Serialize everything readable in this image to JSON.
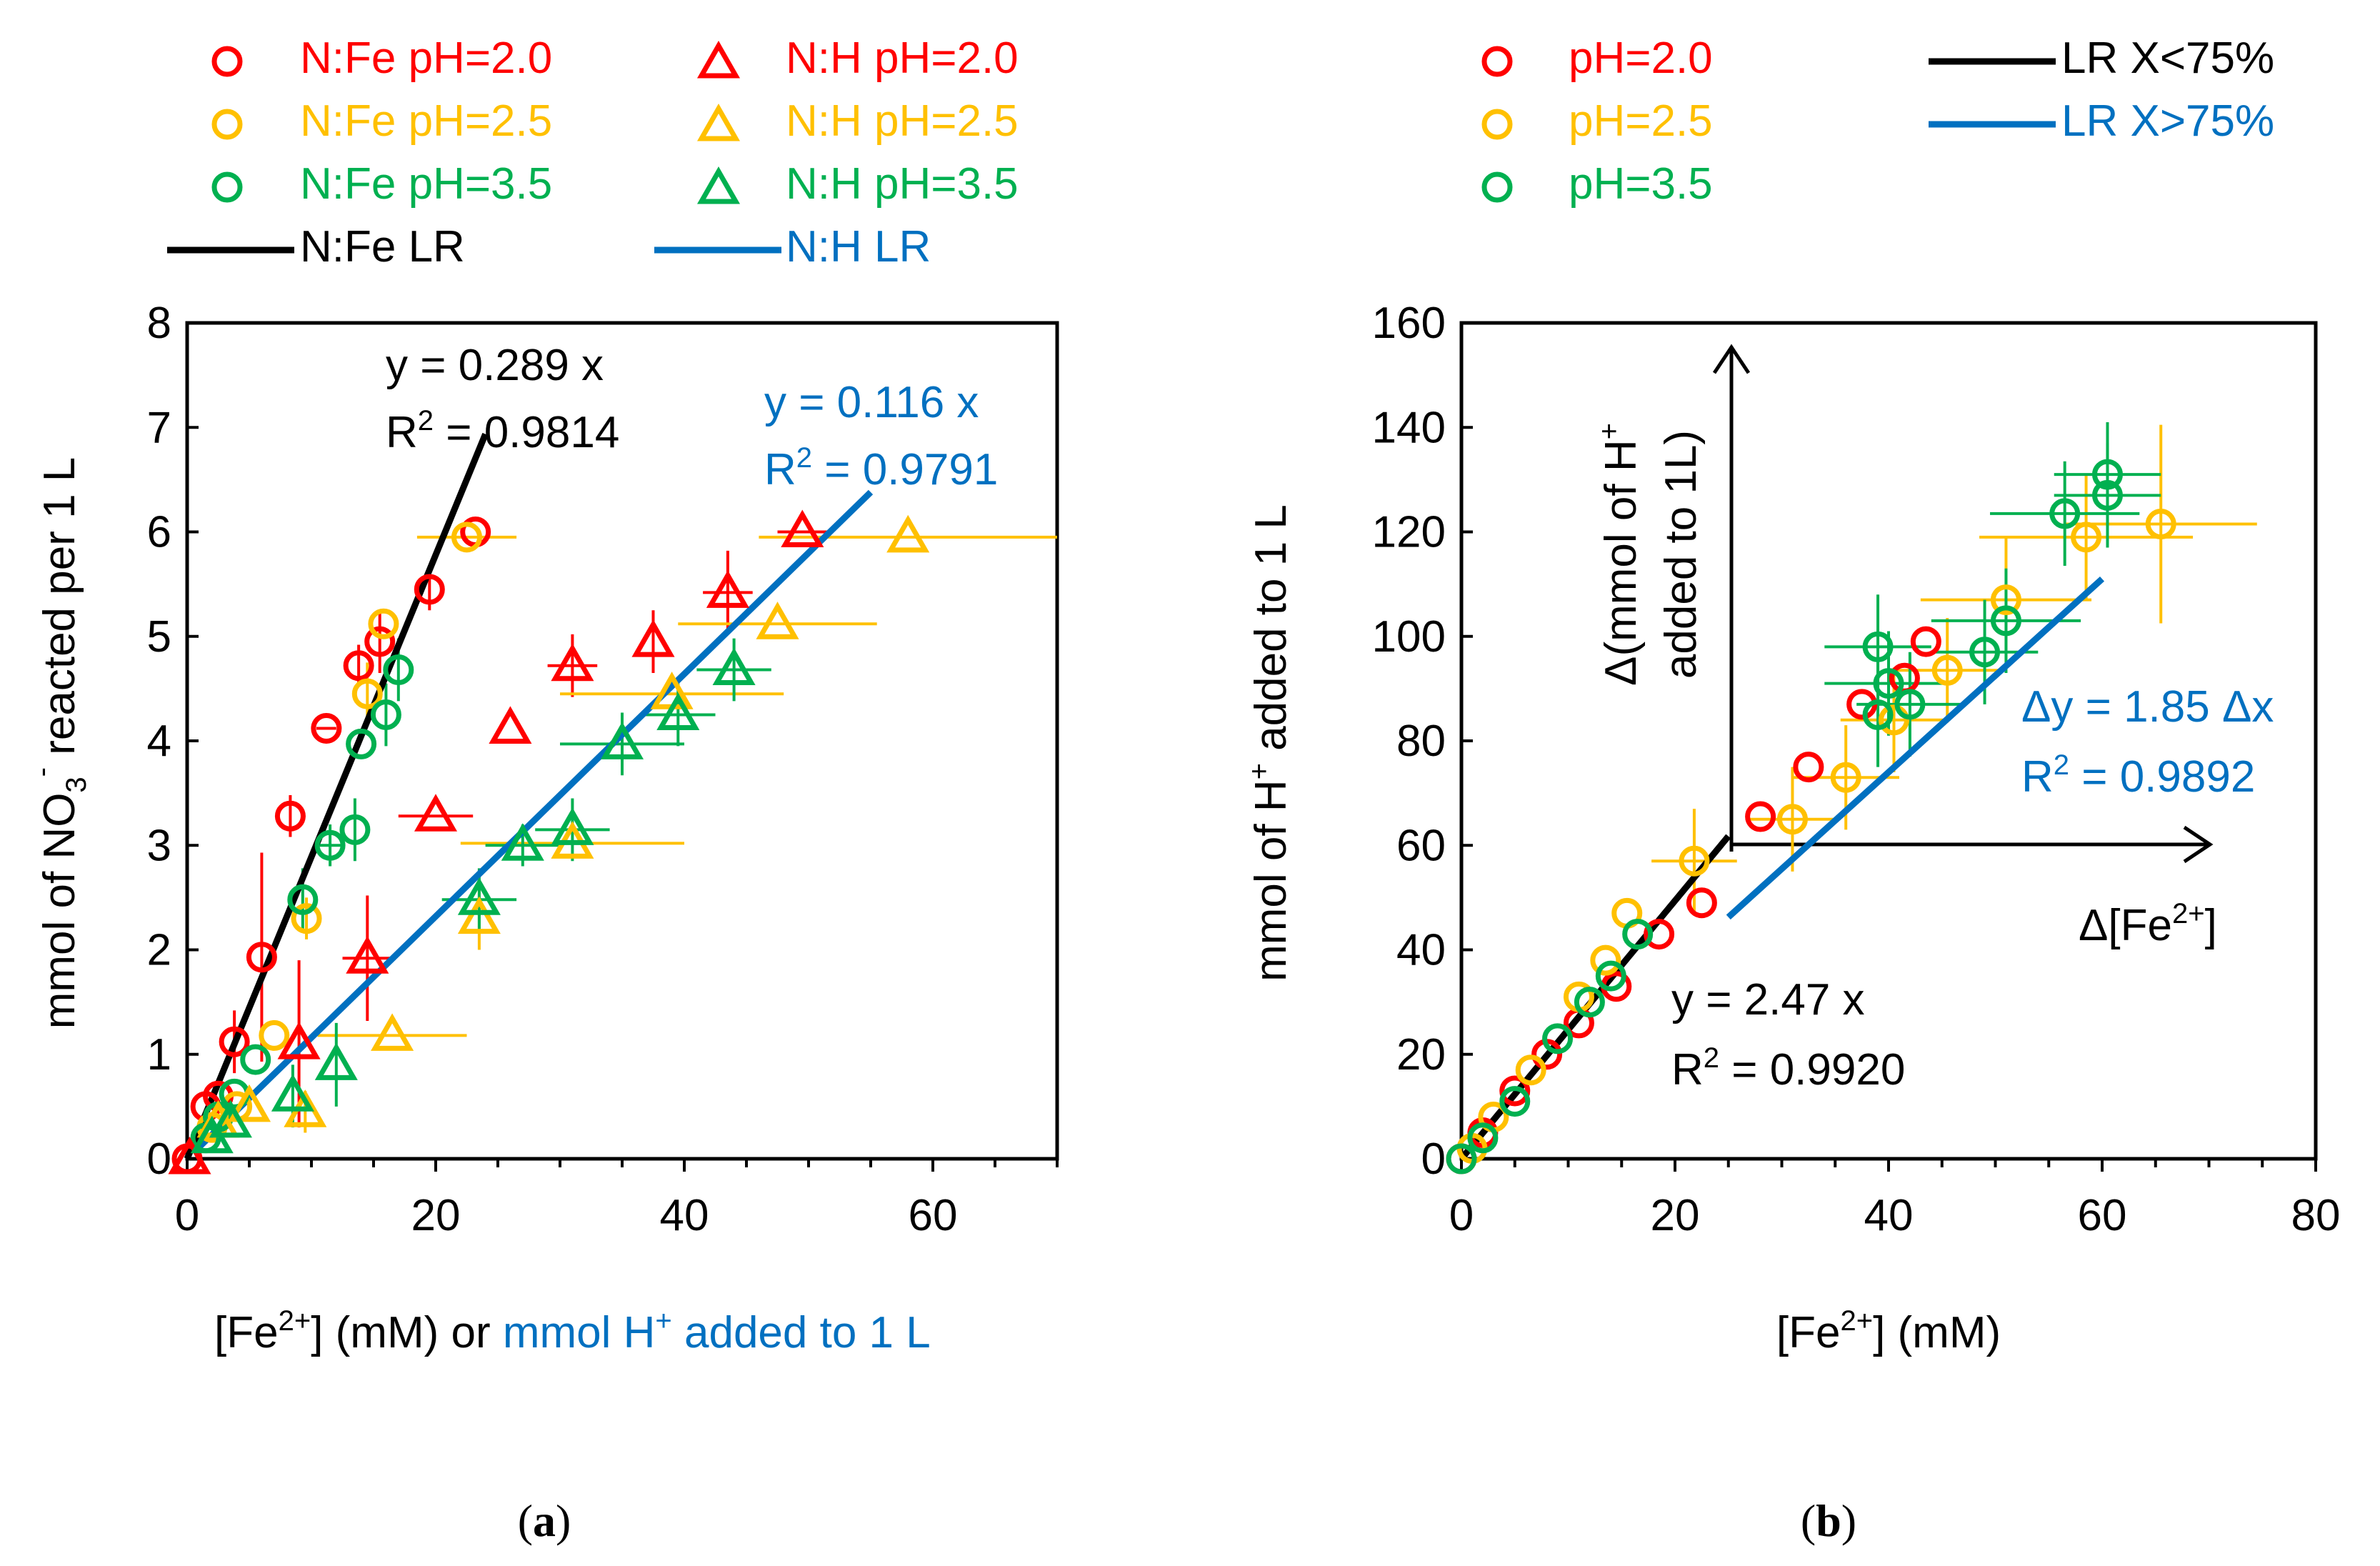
{
  "colors": {
    "red": "#ff0000",
    "yellow": "#ffc000",
    "green": "#00b050",
    "black": "#000000",
    "blue": "#0070c0"
  },
  "panel_a": {
    "caption_open": "(",
    "caption": "a",
    "caption_close": ")",
    "legend": {
      "fe_20": "N:Fe pH=2.0",
      "fe_25": "N:Fe pH=2.5",
      "fe_35": "N:Fe pH=3.5",
      "h_20": "N:H pH=2.0",
      "h_25": "N:H pH=2.5",
      "h_35": "N:H pH=3.5",
      "lr_fe": "N:Fe LR",
      "lr_h": "N:H LR"
    },
    "ylabel": {
      "pre": "mmol of NO",
      "sub": "3",
      "sup": "-",
      "post": " reacted per 1 L"
    },
    "xlabel": {
      "pre": "[Fe",
      "sup": "2+",
      "mid": "] (mM) or ",
      "blue_pre": "mmol H",
      "blue_sup": "+",
      "blue_post": " added to 1 L"
    },
    "eq_fe": {
      "line1": "y = 0.289 x",
      "r_pre": "R",
      "r_sup": "2",
      "r_post": " = 0.9814"
    },
    "eq_h": {
      "line1": "y = 0.116 x",
      "r_pre": "R",
      "r_sup": "2",
      "r_post": " = 0.9791"
    }
  },
  "panel_b": {
    "caption_open": "(",
    "caption": "b",
    "caption_close": ")",
    "legend": {
      "p20": "pH=2.0",
      "p25": "pH=2.5",
      "p35": "pH=3.5",
      "lr_low": "LR X<75%",
      "lr_high": "LR X>75%"
    },
    "ylabel": {
      "pre": "mmol of H",
      "sup": "+",
      "post": " added to 1 L"
    },
    "xlabel": {
      "pre": "[Fe",
      "sup": "2+",
      "post": "] (mM)"
    },
    "eq_low": {
      "line1": "y = 2.47 x",
      "r_pre": "R",
      "r_sup": "2",
      "r_post": " = 0.9920"
    },
    "eq_high": {
      "line1": "Δy = 1.85 Δx",
      "r_pre": "R",
      "r_sup": "2",
      "r_post": " = 0.9892"
    },
    "dy_label": {
      "line1_pre": "Δ(mmol of H",
      "line1_sup": "+",
      "line2": "added to 1L)"
    },
    "dx_label": {
      "pre": "Δ[Fe",
      "sup": "2+",
      "post": "]"
    }
  },
  "chart_data": [
    {
      "type": "scatter",
      "panel": "a",
      "xlabel": "[Fe2+] (mM) or mmol H+ added to 1 L",
      "ylabel": "mmol of NO3- reacted per 1 L",
      "xlim": [
        0,
        70
      ],
      "ylim": [
        0,
        8
      ],
      "xticks": [
        0,
        20,
        40,
        60
      ],
      "yticks": [
        0,
        1,
        2,
        3,
        4,
        5,
        6,
        7,
        8
      ],
      "series": [
        {
          "name": "N:Fe pH=2.0",
          "marker": "circle",
          "color": "#ff0000",
          "points": [
            [
              0,
              0,
              0,
              0
            ],
            [
              1.5,
              0.5,
              0,
              0
            ],
            [
              2.5,
              0.6,
              0,
              0
            ],
            [
              3.8,
              1.12,
              0,
              0.3
            ],
            [
              6,
              1.93,
              0,
              1.0
            ],
            [
              8.3,
              3.28,
              0,
              0.2
            ],
            [
              11.2,
              4.12,
              0.8,
              0
            ],
            [
              13.8,
              4.72,
              0,
              0.2
            ],
            [
              15.5,
              4.95,
              0,
              0.3
            ],
            [
              19.5,
              5.45,
              0,
              0.2
            ],
            [
              23.2,
              6.0,
              0,
              0
            ]
          ]
        },
        {
          "name": "N:Fe pH=2.5",
          "marker": "circle",
          "color": "#ffc000",
          "points": [
            [
              2,
              0.3,
              0,
              0
            ],
            [
              4,
              0.5,
              0,
              0
            ],
            [
              7,
              1.18,
              0,
              0
            ],
            [
              9.6,
              2.3,
              0,
              0.2
            ],
            [
              14.5,
              4.45,
              0,
              0.3
            ],
            [
              15.8,
              5.12,
              0,
              0
            ],
            [
              22.5,
              5.95,
              4,
              0
            ]
          ]
        },
        {
          "name": "N:Fe pH=3.5",
          "marker": "circle",
          "color": "#00b050",
          "points": [
            [
              1.5,
              0.2,
              0,
              0
            ],
            [
              2.5,
              0.4,
              0,
              0
            ],
            [
              3.8,
              0.62,
              0,
              0
            ],
            [
              5.5,
              0.95,
              0,
              0
            ],
            [
              9.3,
              2.48,
              0,
              0.3
            ],
            [
              11.5,
              3.0,
              1,
              0.2
            ],
            [
              13.5,
              3.15,
              0,
              0.3
            ],
            [
              14,
              3.97,
              0,
              0
            ],
            [
              16,
              4.25,
              0,
              0.3
            ],
            [
              17,
              4.68,
              0,
              0.3
            ]
          ]
        },
        {
          "name": "N:H pH=2.0",
          "marker": "triangle",
          "color": "#ff0000",
          "points": [
            [
              0.2,
              0,
              0,
              0
            ],
            [
              9,
              1.1,
              0,
              0.8
            ],
            [
              14.5,
              1.92,
              2,
              0.6
            ],
            [
              20,
              3.28,
              3,
              0
            ],
            [
              26,
              4.12,
              0,
              0
            ],
            [
              31,
              4.72,
              2,
              0.3
            ],
            [
              37.5,
              4.95,
              0,
              0.3
            ],
            [
              43.5,
              5.42,
              2,
              0.4
            ],
            [
              49.5,
              6.0,
              2,
              0
            ]
          ]
        },
        {
          "name": "N:H pH=2.5",
          "marker": "triangle",
          "color": "#ffc000",
          "points": [
            [
              2.5,
              0.35,
              0,
              0
            ],
            [
              5,
              0.5,
              0,
              0
            ],
            [
              9.5,
              0.45,
              0,
              0.2
            ],
            [
              16.5,
              1.18,
              6,
              0
            ],
            [
              23.5,
              2.3,
              0,
              0.3
            ],
            [
              31,
              3.02,
              9,
              0
            ],
            [
              39,
              4.45,
              9,
              0
            ],
            [
              47.5,
              5.12,
              8,
              0
            ],
            [
              58,
              5.95,
              12,
              0
            ]
          ]
        },
        {
          "name": "N:H pH=3.5",
          "marker": "triangle",
          "color": "#00b050",
          "points": [
            [
              2,
              0.2,
              0,
              0
            ],
            [
              3.5,
              0.35,
              0,
              0
            ],
            [
              8.5,
              0.6,
              0,
              0.3
            ],
            [
              12,
              0.9,
              0,
              0.4
            ],
            [
              23.5,
              2.48,
              3,
              0.3
            ],
            [
              27,
              3.0,
              3,
              0.2
            ],
            [
              31,
              3.15,
              3,
              0.3
            ],
            [
              35,
              3.97,
              5,
              0.3
            ],
            [
              39.5,
              4.25,
              3,
              0.3
            ],
            [
              44,
              4.68,
              3,
              0.3
            ]
          ]
        }
      ],
      "lines": [
        {
          "name": "N:Fe LR",
          "color": "#000000",
          "slope": 0.289,
          "x": [
            0,
            24
          ]
        },
        {
          "name": "N:H LR",
          "color": "#0070c0",
          "slope": 0.116,
          "x": [
            1,
            55
          ]
        }
      ]
    },
    {
      "type": "scatter",
      "panel": "b",
      "xlabel": "[Fe2+] (mM)",
      "ylabel": "mmol of H+ added to 1 L",
      "xlim": [
        0,
        80
      ],
      "ylim": [
        0,
        160
      ],
      "xticks": [
        0,
        20,
        40,
        60,
        80
      ],
      "yticks": [
        0,
        20,
        40,
        60,
        80,
        100,
        120,
        140,
        160
      ],
      "series": [
        {
          "name": "pH=2.0",
          "marker": "circle",
          "color": "#ff0000",
          "points": [
            [
              0,
              0,
              0,
              0
            ],
            [
              2,
              5,
              0,
              0
            ],
            [
              5,
              13,
              0,
              0
            ],
            [
              8,
              20,
              0,
              0
            ],
            [
              11,
              26,
              0,
              0
            ],
            [
              14.5,
              33,
              0,
              0
            ],
            [
              18.5,
              43,
              0,
              0
            ],
            [
              22.5,
              49,
              0,
              0
            ],
            [
              28,
              65.5,
              0,
              0
            ],
            [
              32.5,
              75,
              0,
              0
            ],
            [
              37.5,
              87,
              0,
              0
            ],
            [
              41.5,
              92,
              0,
              0
            ],
            [
              43.5,
              99,
              0,
              0
            ]
          ]
        },
        {
          "name": "pH=2.5",
          "marker": "circle",
          "color": "#ffc000",
          "points": [
            [
              1,
              2,
              0,
              0
            ],
            [
              3,
              8,
              0,
              0
            ],
            [
              6.5,
              17,
              0,
              0
            ],
            [
              11,
              31,
              0,
              0
            ],
            [
              13.5,
              38,
              0,
              0
            ],
            [
              15.5,
              47,
              0,
              0
            ],
            [
              21.8,
              57,
              4,
              10
            ],
            [
              31,
              65,
              4,
              10
            ],
            [
              36,
              73,
              5,
              10
            ],
            [
              40.5,
              84,
              5,
              10
            ],
            [
              45.5,
              93.5,
              5,
              10
            ],
            [
              51,
              107,
              8,
              12
            ],
            [
              58.5,
              119,
              10,
              12
            ],
            [
              65.5,
              121.5,
              9,
              19
            ]
          ]
        },
        {
          "name": "pH=3.5",
          "marker": "circle",
          "color": "#00b050",
          "points": [
            [
              0,
              0,
              0,
              0
            ],
            [
              2,
              4,
              0,
              0
            ],
            [
              5,
              11,
              0,
              0
            ],
            [
              9,
              23,
              0,
              0
            ],
            [
              12,
              30,
              0,
              0
            ],
            [
              14,
              35,
              0,
              0
            ],
            [
              16.5,
              43,
              0,
              0
            ],
            [
              39,
              85,
              0,
              10
            ],
            [
              39,
              98,
              5,
              10
            ],
            [
              40,
              91,
              6,
              10
            ],
            [
              42,
              87,
              5,
              10
            ],
            [
              49,
              97,
              5,
              10
            ],
            [
              51,
              103,
              7,
              10
            ],
            [
              56.5,
              123.5,
              7,
              10
            ],
            [
              60.5,
              127,
              5,
              10
            ],
            [
              60.5,
              131,
              5,
              10
            ]
          ]
        }
      ],
      "lines": [
        {
          "name": "LR X<75%",
          "color": "#000000",
          "slope": 2.47,
          "x": [
            0,
            25
          ]
        },
        {
          "name": "LR X>75%",
          "color": "#0070c0",
          "slope": 1.85,
          "x": [
            25,
            60
          ]
        }
      ]
    }
  ]
}
